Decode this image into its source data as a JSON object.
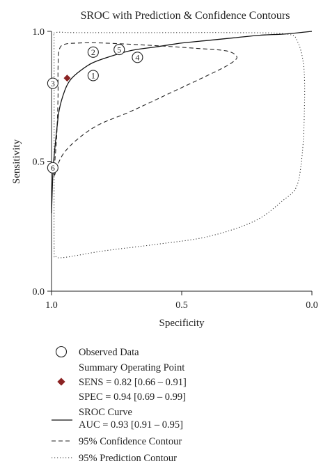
{
  "chart_data": {
    "type": "scatter",
    "title": "SROC with Prediction & Confidence Contours",
    "xlabel": "Specificity",
    "ylabel": "Sensitivity",
    "xlim": [
      1.0,
      0.0
    ],
    "ylim": [
      0.0,
      1.0
    ],
    "x_reversed": true,
    "grid": false,
    "x_ticks": [
      "1.0",
      "0.5",
      "0.0"
    ],
    "y_ticks": [
      "0.0",
      "0.5",
      "1.0"
    ],
    "observed_data": [
      {
        "label": "1",
        "specificity": 0.84,
        "sensitivity": 0.83
      },
      {
        "label": "2",
        "specificity": 0.84,
        "sensitivity": 0.92
      },
      {
        "label": "3",
        "specificity": 0.995,
        "sensitivity": 0.8
      },
      {
        "label": "4",
        "specificity": 0.67,
        "sensitivity": 0.9
      },
      {
        "label": "5",
        "specificity": 0.74,
        "sensitivity": 0.93
      },
      {
        "label": "6",
        "specificity": 0.995,
        "sensitivity": 0.475
      }
    ],
    "summary_point": {
      "specificity": 0.94,
      "sensitivity": 0.82,
      "color": "#8b2323"
    },
    "sroc_curve": [
      {
        "specificity": 1.0,
        "sensitivity": 0.3
      },
      {
        "specificity": 0.995,
        "sensitivity": 0.45
      },
      {
        "specificity": 0.99,
        "sensitivity": 0.52
      },
      {
        "specificity": 0.98,
        "sensitivity": 0.62
      },
      {
        "specificity": 0.97,
        "sensitivity": 0.7
      },
      {
        "specificity": 0.95,
        "sensitivity": 0.77
      },
      {
        "specificity": 0.93,
        "sensitivity": 0.81
      },
      {
        "specificity": 0.9,
        "sensitivity": 0.84
      },
      {
        "specificity": 0.85,
        "sensitivity": 0.875
      },
      {
        "specificity": 0.8,
        "sensitivity": 0.895
      },
      {
        "specificity": 0.7,
        "sensitivity": 0.925
      },
      {
        "specificity": 0.6,
        "sensitivity": 0.94
      },
      {
        "specificity": 0.5,
        "sensitivity": 0.955
      },
      {
        "specificity": 0.4,
        "sensitivity": 0.965
      },
      {
        "specificity": 0.3,
        "sensitivity": 0.975
      },
      {
        "specificity": 0.2,
        "sensitivity": 0.985
      },
      {
        "specificity": 0.1,
        "sensitivity": 0.99
      },
      {
        "specificity": 0.0,
        "sensitivity": 1.0
      }
    ],
    "confidence_contour": [
      {
        "specificity": 0.99,
        "sensitivity": 0.45
      },
      {
        "specificity": 0.98,
        "sensitivity": 0.6
      },
      {
        "specificity": 0.975,
        "sensitivity": 0.75
      },
      {
        "specificity": 0.975,
        "sensitivity": 0.86
      },
      {
        "specificity": 0.97,
        "sensitivity": 0.93
      },
      {
        "specificity": 0.95,
        "sensitivity": 0.95
      },
      {
        "specificity": 0.9,
        "sensitivity": 0.955
      },
      {
        "specificity": 0.8,
        "sensitivity": 0.955
      },
      {
        "specificity": 0.6,
        "sensitivity": 0.945
      },
      {
        "specificity": 0.45,
        "sensitivity": 0.935
      },
      {
        "specificity": 0.33,
        "sensitivity": 0.925
      },
      {
        "specificity": 0.29,
        "sensitivity": 0.905
      },
      {
        "specificity": 0.3,
        "sensitivity": 0.885
      },
      {
        "specificity": 0.36,
        "sensitivity": 0.85
      },
      {
        "specificity": 0.55,
        "sensitivity": 0.76
      },
      {
        "specificity": 0.7,
        "sensitivity": 0.69
      },
      {
        "specificity": 0.82,
        "sensitivity": 0.64
      },
      {
        "specificity": 0.9,
        "sensitivity": 0.585
      },
      {
        "specificity": 0.95,
        "sensitivity": 0.535
      },
      {
        "specificity": 0.975,
        "sensitivity": 0.49
      },
      {
        "specificity": 0.99,
        "sensitivity": 0.45
      }
    ],
    "prediction_contour": [
      {
        "specificity": 0.99,
        "sensitivity": 0.17
      },
      {
        "specificity": 0.99,
        "sensitivity": 0.5
      },
      {
        "specificity": 0.99,
        "sensitivity": 0.8
      },
      {
        "specificity": 0.99,
        "sensitivity": 0.97
      },
      {
        "specificity": 0.985,
        "sensitivity": 0.995
      },
      {
        "specificity": 0.9,
        "sensitivity": 0.995
      },
      {
        "specificity": 0.6,
        "sensitivity": 0.995
      },
      {
        "specificity": 0.3,
        "sensitivity": 0.995
      },
      {
        "specificity": 0.1,
        "sensitivity": 0.99
      },
      {
        "specificity": 0.055,
        "sensitivity": 0.96
      },
      {
        "specificity": 0.03,
        "sensitivity": 0.85
      },
      {
        "specificity": 0.03,
        "sensitivity": 0.65
      },
      {
        "specificity": 0.04,
        "sensitivity": 0.5
      },
      {
        "specificity": 0.06,
        "sensitivity": 0.4
      },
      {
        "specificity": 0.11,
        "sensitivity": 0.35
      },
      {
        "specificity": 0.22,
        "sensitivity": 0.27
      },
      {
        "specificity": 0.4,
        "sensitivity": 0.21
      },
      {
        "specificity": 0.6,
        "sensitivity": 0.18
      },
      {
        "specificity": 0.8,
        "sensitivity": 0.155
      },
      {
        "specificity": 0.95,
        "sensitivity": 0.13
      },
      {
        "specificity": 0.985,
        "sensitivity": 0.135
      },
      {
        "specificity": 0.99,
        "sensitivity": 0.17
      }
    ],
    "legend": {
      "placement": "bottom",
      "observed": "Observed Data",
      "summary_title": "Summary Operating Point",
      "sens": "SENS = 0.82 [0.66 – 0.91]",
      "spec": "SPEC = 0.94 [0.69 – 0.99]",
      "sroc_title": "SROC Curve",
      "auc": "AUC = 0.93 [0.91 – 0.95]",
      "confidence": "95% Confidence Contour",
      "prediction": "95% Prediction Contour"
    }
  }
}
